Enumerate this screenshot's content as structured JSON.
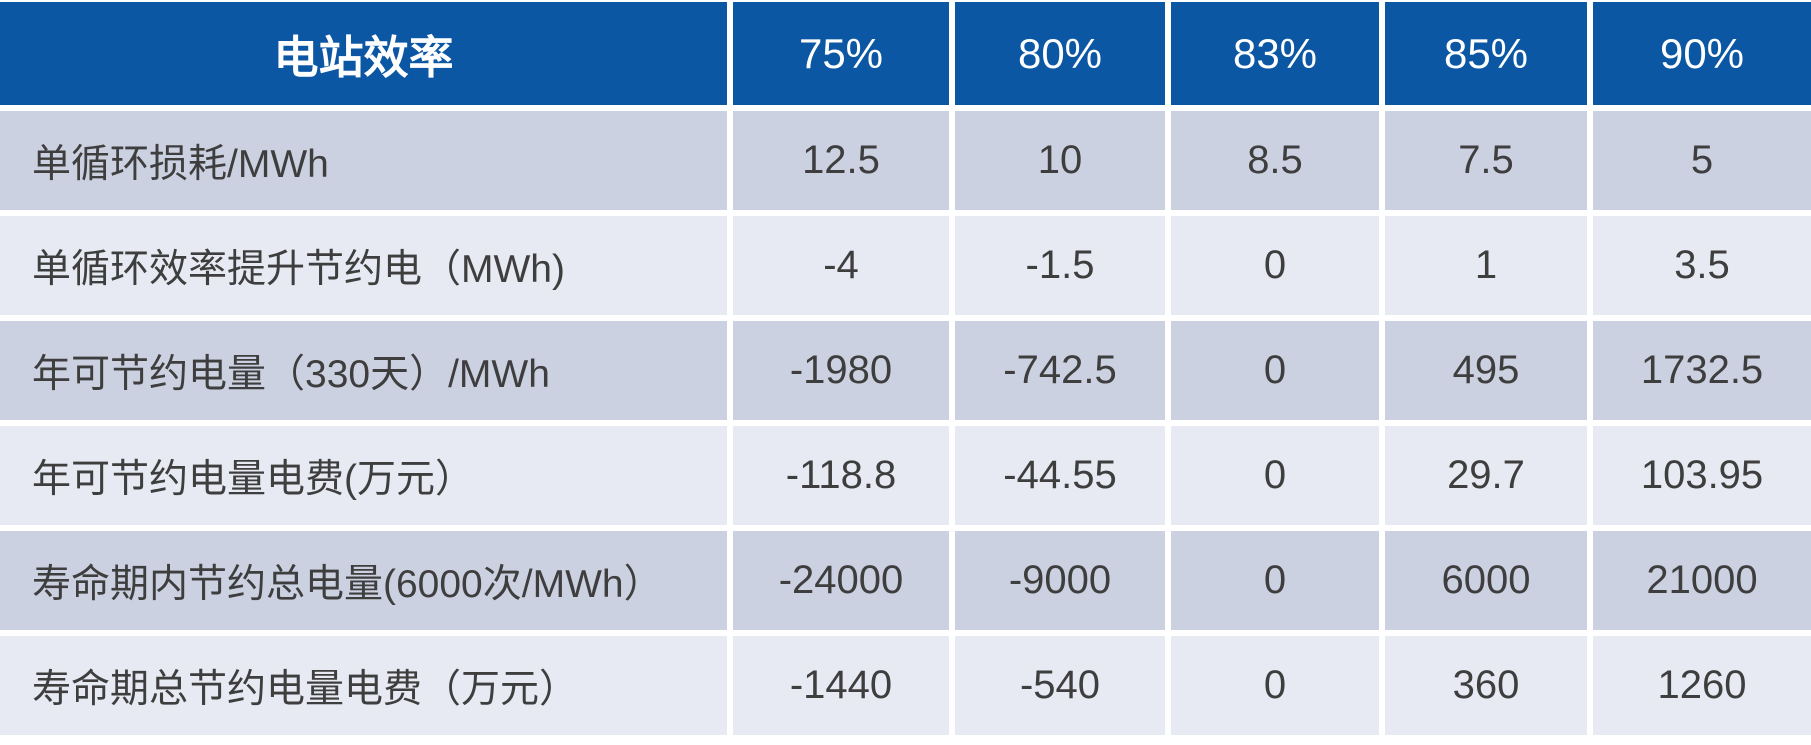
{
  "table": {
    "header": {
      "title": "电站效率",
      "columns": [
        "75%",
        "80%",
        "83%",
        "85%",
        "90%"
      ]
    },
    "rows": [
      {
        "label": "单循环损耗/MWh",
        "values": [
          "12.5",
          "10",
          "8.5",
          "7.5",
          "5"
        ]
      },
      {
        "label": "单循环效率提升节约电（MWh)",
        "values": [
          "-4",
          "-1.5",
          "0",
          "1",
          "3.5"
        ]
      },
      {
        "label": "年可节约电量（330天）/MWh",
        "values": [
          "-1980",
          "-742.5",
          "0",
          "495",
          "1732.5"
        ]
      },
      {
        "label": "年可节约电量电费(万元）",
        "values": [
          "-118.8",
          "-44.55",
          "0",
          "29.7",
          "103.95"
        ]
      },
      {
        "label": "寿命期内节约总电量(6000次/MWh）",
        "values": [
          "-24000",
          "-9000",
          "0",
          "6000",
          "21000"
        ]
      },
      {
        "label": "寿命期总节约电量电费（万元）",
        "values": [
          "-1440",
          "-540",
          "0",
          "360",
          "1260"
        ]
      }
    ]
  },
  "colors": {
    "header_bg": "#0B57A4",
    "header_text": "#FFFFFF",
    "row_dark_bg": "#CCD1E1",
    "row_light_bg": "#E7E9F3",
    "body_text": "#3E3E3E",
    "divider": "#FFFFFF"
  },
  "chart_data": {
    "type": "table",
    "title": "电站效率",
    "columns": [
      "75%",
      "80%",
      "83%",
      "85%",
      "90%"
    ],
    "rows": [
      {
        "label": "单循环损耗/MWh",
        "values": [
          12.5,
          10,
          8.5,
          7.5,
          5
        ]
      },
      {
        "label": "单循环效率提升节约电（MWh)",
        "values": [
          -4,
          -1.5,
          0,
          1,
          3.5
        ]
      },
      {
        "label": "年可节约电量（330天）/MWh",
        "values": [
          -1980,
          -742.5,
          0,
          495,
          1732.5
        ]
      },
      {
        "label": "年可节约电量电费(万元）",
        "values": [
          -118.8,
          -44.55,
          0,
          29.7,
          103.95
        ]
      },
      {
        "label": "寿命期内节约总电量(6000次/MWh）",
        "values": [
          -24000,
          -9000,
          0,
          6000,
          21000
        ]
      },
      {
        "label": "寿命期总节约电量电费（万元）",
        "values": [
          -1440,
          -540,
          0,
          360,
          1260
        ]
      }
    ]
  }
}
